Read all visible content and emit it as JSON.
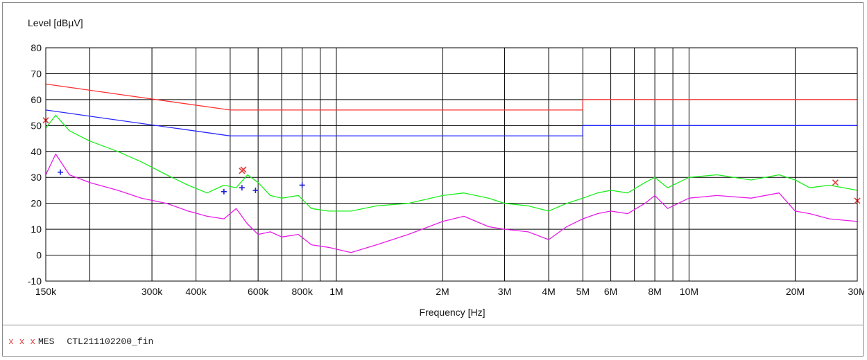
{
  "chart_data": {
    "type": "line",
    "ylabel": "Level [dBµV]",
    "xlabel": "Frequency [Hz]",
    "xscale": "log",
    "xlim": [
      150000,
      30000000
    ],
    "ylim": [
      -10,
      80
    ],
    "grid": true,
    "ytick_labels": [
      "-10",
      "0",
      "10",
      "20",
      "30",
      "40",
      "50",
      "60",
      "70",
      "80"
    ],
    "yticks": [
      -10,
      0,
      10,
      20,
      30,
      40,
      50,
      60,
      70,
      80
    ],
    "xtick_labels": [
      "150k",
      "300k",
      "400k",
      "600k",
      "800k",
      "1M",
      "2M",
      "3M",
      "4M",
      "5M",
      "6M",
      "8M",
      "10M",
      "20M",
      "30M"
    ],
    "xticks": [
      150000,
      300000,
      400000,
      600000,
      800000,
      1000000,
      2000000,
      3000000,
      4000000,
      5000000,
      6000000,
      8000000,
      10000000,
      20000000,
      30000000
    ],
    "xgrid": [
      150000,
      200000,
      300000,
      400000,
      500000,
      600000,
      700000,
      800000,
      900000,
      1000000,
      2000000,
      3000000,
      4000000,
      5000000,
      6000000,
      7000000,
      8000000,
      9000000,
      10000000,
      20000000,
      30000000
    ],
    "series": [
      {
        "color": "#ff3030",
        "points": [
          [
            150000,
            66
          ],
          [
            500000,
            56
          ],
          [
            5000000,
            56
          ],
          [
            5000000,
            60
          ],
          [
            30000000,
            60
          ]
        ]
      },
      {
        "color": "#2828ff",
        "points": [
          [
            150000,
            56
          ],
          [
            500000,
            46
          ],
          [
            5000000,
            46
          ],
          [
            5000000,
            50
          ],
          [
            30000000,
            50
          ]
        ]
      },
      {
        "color": "#18f018",
        "points": [
          [
            150000,
            49
          ],
          [
            160000,
            54
          ],
          [
            175000,
            48
          ],
          [
            200000,
            44
          ],
          [
            240000,
            40
          ],
          [
            280000,
            36
          ],
          [
            330000,
            31
          ],
          [
            380000,
            27
          ],
          [
            430000,
            24
          ],
          [
            480000,
            27
          ],
          [
            520000,
            26
          ],
          [
            560000,
            31
          ],
          [
            600000,
            28
          ],
          [
            650000,
            23
          ],
          [
            700000,
            22
          ],
          [
            780000,
            23
          ],
          [
            850000,
            18
          ],
          [
            950000,
            17
          ],
          [
            1100000,
            17
          ],
          [
            1300000,
            19
          ],
          [
            1600000,
            20
          ],
          [
            2000000,
            23
          ],
          [
            2300000,
            24
          ],
          [
            2700000,
            22
          ],
          [
            3000000,
            20
          ],
          [
            3500000,
            19
          ],
          [
            4000000,
            17
          ],
          [
            4500000,
            20
          ],
          [
            5000000,
            22
          ],
          [
            5500000,
            24
          ],
          [
            6000000,
            25
          ],
          [
            6700000,
            24
          ],
          [
            7500000,
            28
          ],
          [
            8000000,
            30
          ],
          [
            8700000,
            26
          ],
          [
            10000000,
            30
          ],
          [
            12000000,
            31
          ],
          [
            15000000,
            29
          ],
          [
            18000000,
            31
          ],
          [
            20000000,
            29
          ],
          [
            22000000,
            26
          ],
          [
            25000000,
            27
          ],
          [
            30000000,
            25
          ]
        ]
      },
      {
        "color": "#e81ce8",
        "points": [
          [
            150000,
            31
          ],
          [
            160000,
            39
          ],
          [
            175000,
            31
          ],
          [
            200000,
            28
          ],
          [
            240000,
            25
          ],
          [
            280000,
            22
          ],
          [
            330000,
            20
          ],
          [
            380000,
            17
          ],
          [
            430000,
            15
          ],
          [
            480000,
            14
          ],
          [
            520000,
            18
          ],
          [
            560000,
            12
          ],
          [
            600000,
            8
          ],
          [
            650000,
            9
          ],
          [
            700000,
            7
          ],
          [
            780000,
            8
          ],
          [
            850000,
            4
          ],
          [
            950000,
            3
          ],
          [
            1100000,
            1
          ],
          [
            1300000,
            4
          ],
          [
            1600000,
            8
          ],
          [
            2000000,
            13
          ],
          [
            2300000,
            15
          ],
          [
            2700000,
            11
          ],
          [
            3000000,
            10
          ],
          [
            3500000,
            9
          ],
          [
            4000000,
            6
          ],
          [
            4500000,
            11
          ],
          [
            5000000,
            14
          ],
          [
            5500000,
            16
          ],
          [
            6000000,
            17
          ],
          [
            6700000,
            16
          ],
          [
            7500000,
            20
          ],
          [
            8000000,
            23
          ],
          [
            8700000,
            18
          ],
          [
            10000000,
            22
          ],
          [
            12000000,
            23
          ],
          [
            15000000,
            22
          ],
          [
            18000000,
            24
          ],
          [
            20000000,
            17
          ],
          [
            22000000,
            16
          ],
          [
            25000000,
            14
          ],
          [
            30000000,
            13
          ]
        ]
      }
    ],
    "markers_x": {
      "color": "#e23a3a",
      "points": [
        [
          150000,
          52
        ],
        [
          540000,
          32.5
        ],
        [
          545000,
          33
        ],
        [
          26000000,
          28
        ],
        [
          30000000,
          21
        ]
      ]
    },
    "markers_plus": {
      "color": "#1a1ad8",
      "points": [
        [
          165000,
          32
        ],
        [
          480000,
          24.5
        ],
        [
          540000,
          26
        ],
        [
          590000,
          25
        ],
        [
          800000,
          27
        ]
      ]
    }
  },
  "footer": {
    "marks": "x x x",
    "label": "MES",
    "file": "CTL211102200_fin"
  }
}
